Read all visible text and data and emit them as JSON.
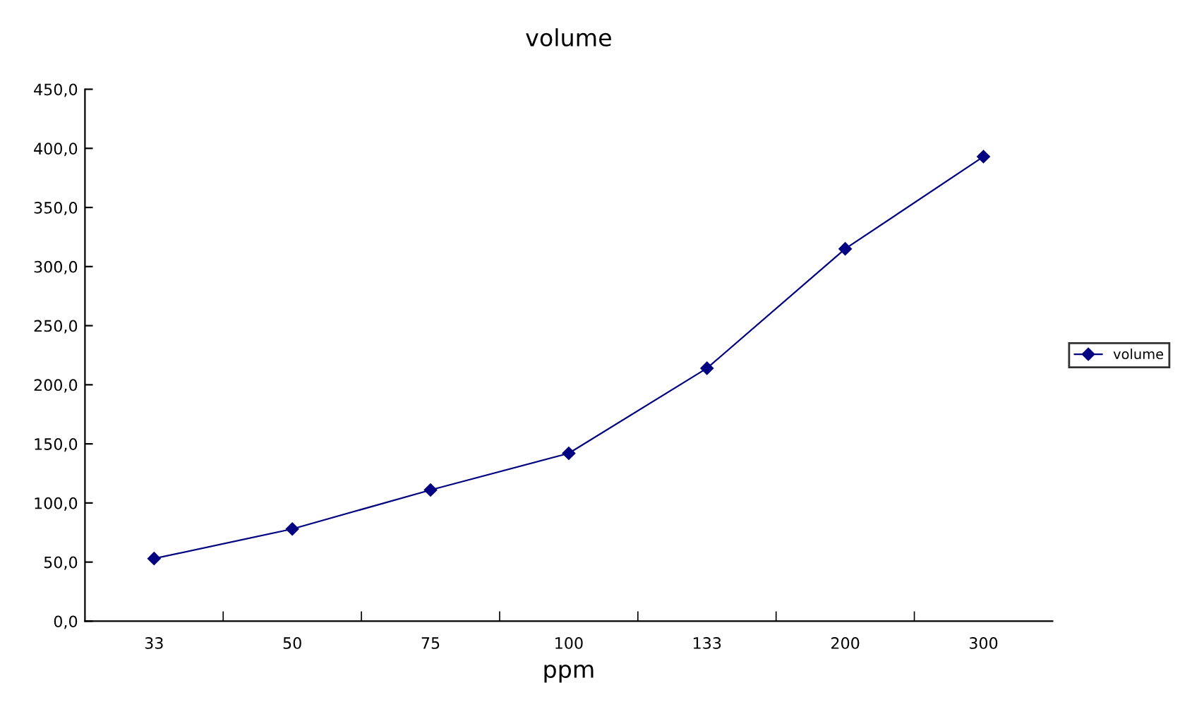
{
  "chart_data": {
    "type": "line",
    "title": "volume",
    "xlabel": "ppm",
    "categories": [
      "33",
      "50",
      "75",
      "100",
      "133",
      "200",
      "300"
    ],
    "series": [
      {
        "name": "volume",
        "color": "#000080",
        "values": [
          53,
          78,
          111,
          142,
          214,
          315,
          393
        ]
      }
    ],
    "ylim": [
      0,
      450
    ],
    "yticks": [
      {
        "value": 0,
        "label": "0,0"
      },
      {
        "value": 50,
        "label": "50,0"
      },
      {
        "value": 100,
        "label": "100,0"
      },
      {
        "value": 150,
        "label": "150,0"
      },
      {
        "value": 200,
        "label": "200,0"
      },
      {
        "value": 250,
        "label": "250,0"
      },
      {
        "value": 300,
        "label": "300,0"
      },
      {
        "value": 350,
        "label": "350,0"
      },
      {
        "value": 400,
        "label": "400,0"
      },
      {
        "value": 450,
        "label": "450,0"
      }
    ],
    "legend": "right",
    "marker": "diamond",
    "line_style": "solid",
    "grid": false
  }
}
